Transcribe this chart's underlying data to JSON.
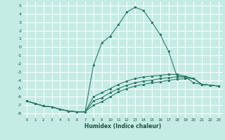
{
  "title": "",
  "xlabel": "Humidex (Indice chaleur)",
  "background_color": "#c5ece4",
  "grid_color": "#ffffff",
  "line_color": "#2d7a6a",
  "xlim": [
    -0.5,
    23.5
  ],
  "ylim": [
    -8.5,
    5.5
  ],
  "xticks": [
    0,
    1,
    2,
    3,
    4,
    5,
    6,
    7,
    8,
    9,
    10,
    11,
    12,
    13,
    14,
    15,
    16,
    17,
    18,
    19,
    20,
    21,
    22,
    23
  ],
  "yticks": [
    -8,
    -7,
    -6,
    -5,
    -4,
    -3,
    -2,
    -1,
    0,
    1,
    2,
    3,
    4,
    5
  ],
  "line1_x": [
    0,
    1,
    2,
    3,
    4,
    5,
    6,
    7,
    8,
    9,
    10,
    11,
    12,
    13,
    14,
    15,
    16,
    17,
    18,
    19,
    20,
    21,
    22,
    23
  ],
  "line1_y": [
    -6.5,
    -6.8,
    -7.1,
    -7.2,
    -7.5,
    -7.7,
    -7.8,
    -7.8,
    -2.2,
    0.5,
    1.3,
    2.7,
    4.2,
    4.8,
    4.4,
    3.0,
    1.5,
    -0.5,
    -3.5,
    -3.6,
    -4.3,
    -4.5,
    -4.6,
    -4.7
  ],
  "line2_x": [
    0,
    1,
    2,
    3,
    4,
    5,
    6,
    7,
    8,
    9,
    10,
    11,
    12,
    13,
    14,
    15,
    16,
    17,
    18,
    19,
    20,
    21,
    22,
    23
  ],
  "line2_y": [
    -6.5,
    -6.8,
    -7.1,
    -7.2,
    -7.5,
    -7.7,
    -7.8,
    -7.8,
    -7.0,
    -6.6,
    -6.0,
    -5.4,
    -5.0,
    -4.7,
    -4.5,
    -4.3,
    -4.2,
    -4.0,
    -3.9,
    -3.8,
    -3.8,
    -4.5,
    -4.6,
    -4.7
  ],
  "line3_x": [
    0,
    1,
    2,
    3,
    4,
    5,
    6,
    7,
    8,
    9,
    10,
    11,
    12,
    13,
    14,
    15,
    16,
    17,
    18,
    19,
    20,
    21,
    22,
    23
  ],
  "line3_y": [
    -6.5,
    -6.8,
    -7.1,
    -7.2,
    -7.5,
    -7.7,
    -7.8,
    -7.8,
    -6.5,
    -6.1,
    -5.5,
    -5.0,
    -4.6,
    -4.3,
    -4.1,
    -4.0,
    -3.8,
    -3.7,
    -3.6,
    -3.6,
    -3.8,
    -4.5,
    -4.6,
    -4.7
  ],
  "line4_x": [
    0,
    1,
    2,
    3,
    4,
    5,
    6,
    7,
    8,
    9,
    10,
    11,
    12,
    13,
    14,
    15,
    16,
    17,
    18,
    19,
    20,
    21,
    22,
    23
  ],
  "line4_y": [
    -6.5,
    -6.8,
    -7.1,
    -7.2,
    -7.5,
    -7.7,
    -7.8,
    -7.8,
    -6.0,
    -5.5,
    -5.0,
    -4.5,
    -4.1,
    -3.8,
    -3.6,
    -3.5,
    -3.4,
    -3.3,
    -3.3,
    -3.5,
    -3.8,
    -4.5,
    -4.6,
    -4.7
  ]
}
